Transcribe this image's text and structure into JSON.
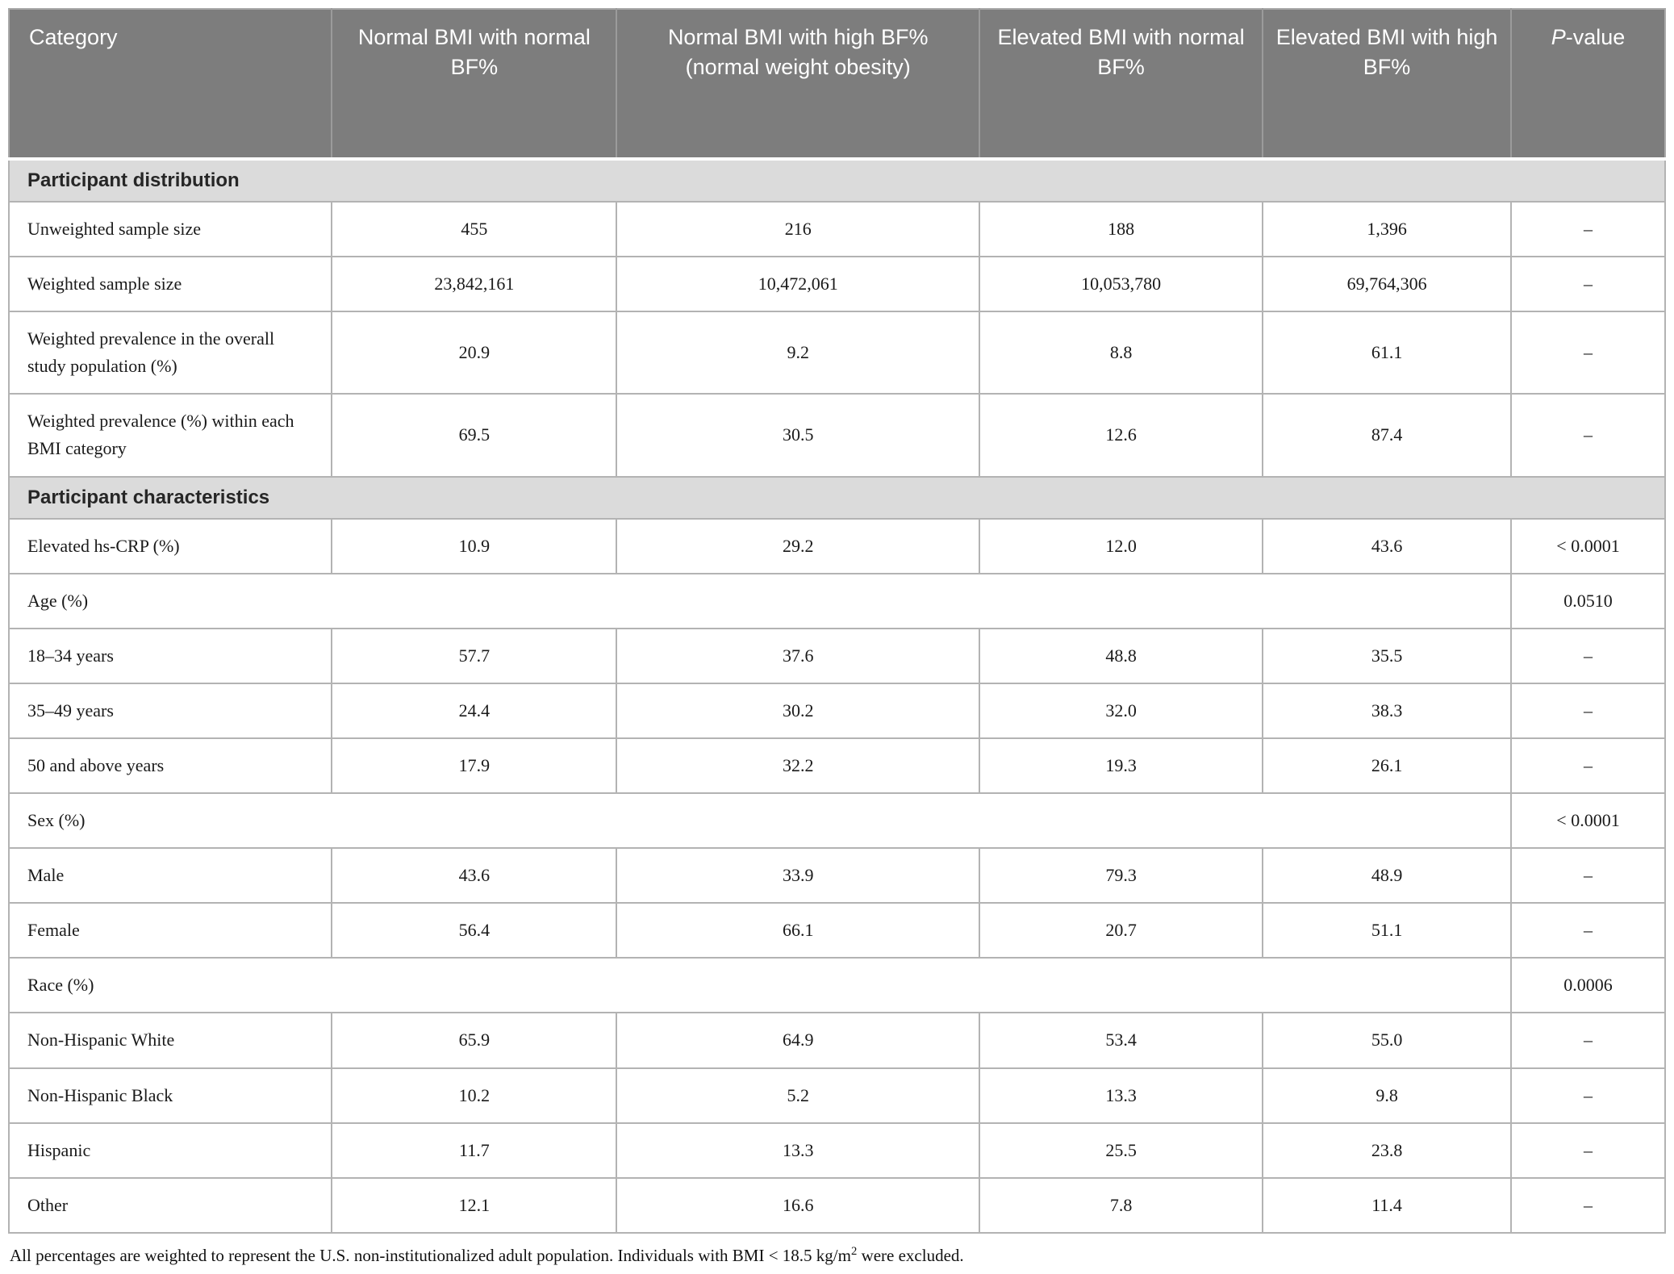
{
  "colors": {
    "header_bg": "#7d7d7d",
    "header_text": "#ffffff",
    "band_bg": "#dbdbdb",
    "border": "#b3b3b3",
    "text": "#1a1a1a"
  },
  "table": {
    "header": [
      {
        "title": "Category"
      },
      {
        "title": "Normal BMI with normal BF%"
      },
      {
        "title": "Normal BMI with high BF%",
        "subtitle": "(normal weight obesity)"
      },
      {
        "title": "Elevated BMI with normal BF%"
      },
      {
        "title": "Elevated BMI with high BF%"
      },
      {
        "italic": "P",
        "rest": "-value"
      }
    ],
    "rows": [
      {
        "type": "section",
        "label": "Participant distribution"
      },
      {
        "type": "data",
        "label": "Unweighted sample size",
        "values": [
          "455",
          "216",
          "188",
          "1,396"
        ],
        "p": "–"
      },
      {
        "type": "data",
        "label": "Weighted sample size",
        "values": [
          "23,842,161",
          "10,472,061",
          "10,053,780",
          "69,764,306"
        ],
        "p": "–"
      },
      {
        "type": "data",
        "label": "Weighted prevalence in the overall study population (%)",
        "values": [
          "20.9",
          "9.2",
          "8.8",
          "61.1"
        ],
        "p": "–"
      },
      {
        "type": "data",
        "label": "Weighted prevalence (%) within each BMI category",
        "values": [
          "69.5",
          "30.5",
          "12.6",
          "87.4"
        ],
        "p": "–"
      },
      {
        "type": "section",
        "label": "Participant characteristics"
      },
      {
        "type": "data",
        "label": "Elevated hs-CRP (%)",
        "values": [
          "10.9",
          "29.2",
          "12.0",
          "43.6"
        ],
        "p": "< 0.0001"
      },
      {
        "type": "span",
        "label": "Age (%)",
        "p": "0.0510"
      },
      {
        "type": "data",
        "label": "18–34 years",
        "values": [
          "57.7",
          "37.6",
          "48.8",
          "35.5"
        ],
        "p": "–"
      },
      {
        "type": "data",
        "label": "35–49 years",
        "values": [
          "24.4",
          "30.2",
          "32.0",
          "38.3"
        ],
        "p": "–"
      },
      {
        "type": "data",
        "label": "50 and above years",
        "values": [
          "17.9",
          "32.2",
          "19.3",
          "26.1"
        ],
        "p": "–"
      },
      {
        "type": "span",
        "label": "Sex (%)",
        "p": "< 0.0001"
      },
      {
        "type": "data",
        "label": "Male",
        "values": [
          "43.6",
          "33.9",
          "79.3",
          "48.9"
        ],
        "p": "–"
      },
      {
        "type": "data",
        "label": "Female",
        "values": [
          "56.4",
          "66.1",
          "20.7",
          "51.1"
        ],
        "p": "–"
      },
      {
        "type": "span",
        "label": "Race (%)",
        "p": "0.0006"
      },
      {
        "type": "data",
        "label": "Non-Hispanic White",
        "values": [
          "65.9",
          "64.9",
          "53.4",
          "55.0"
        ],
        "p": "–"
      },
      {
        "type": "data",
        "label": "Non-Hispanic Black",
        "values": [
          "10.2",
          "5.2",
          "13.3",
          "9.8"
        ],
        "p": "–"
      },
      {
        "type": "data",
        "label": "Hispanic",
        "values": [
          "11.7",
          "13.3",
          "25.5",
          "23.8"
        ],
        "p": "–"
      },
      {
        "type": "data",
        "label": "Other",
        "values": [
          "12.1",
          "16.6",
          "7.8",
          "11.4"
        ],
        "p": "–"
      }
    ]
  },
  "footnote": {
    "text": "All percentages are weighted to represent the U.S. non-institutionalized adult population. Individuals with BMI < 18.5 kg/m",
    "sup": "2",
    "tail": " were excluded."
  }
}
